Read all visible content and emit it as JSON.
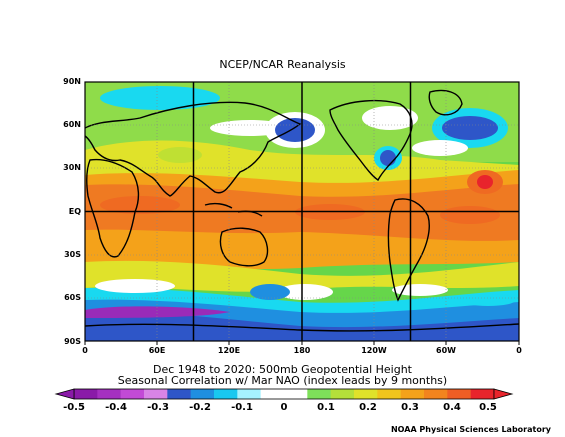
{
  "title": "NCEP/NCAR Reanalysis",
  "map": {
    "lat_labels": [
      "90N",
      "60N",
      "30N",
      "EQ",
      "30S",
      "60S",
      "90S"
    ],
    "lon_labels": [
      "0",
      "60E",
      "120E",
      "180",
      "120W",
      "60W",
      "0"
    ],
    "highlight_meridians": [
      "90E",
      "180",
      "90W"
    ],
    "highlight_parallels": [
      "EQ"
    ],
    "colors": {
      "purple": "#9a2bb8",
      "magenta": "#cc55dd",
      "dark_blue": "#2e56c8",
      "blue": "#1f8fe0",
      "cyan": "#19d9f0",
      "white": "#ffffff",
      "green": "#66d64a",
      "yellow_green": "#bfe033",
      "yellow": "#f0d21c",
      "orange": "#f29a18",
      "red_orange": "#ef6a22",
      "red": "#e8242c"
    }
  },
  "caption": {
    "line1": "Dec 1948 to 2020: 500mb Geopotential Height",
    "line2": "Seasonal Correlation w/ Mar NAO (index leads by 9 months)"
  },
  "colorbar": {
    "labels": [
      "-0.5",
      "-0.4",
      "-0.3",
      "-0.2",
      "-0.1",
      "0",
      "0.1",
      "0.2",
      "0.3",
      "0.4",
      "0.5"
    ],
    "colors": [
      "#8a1aa8",
      "#a530c0",
      "#c24ad6",
      "#d884e6",
      "#2e56c8",
      "#1f8fe0",
      "#19c8f0",
      "#a6f2ff",
      "#ffffff",
      "#ffffff",
      "#7ee05a",
      "#b4e03a",
      "#e0e22a",
      "#f0c41c",
      "#f4a21a",
      "#f2841e",
      "#ee5e24",
      "#e8242c"
    ]
  },
  "credit": "NOAA Physical Sciences Laboratory"
}
